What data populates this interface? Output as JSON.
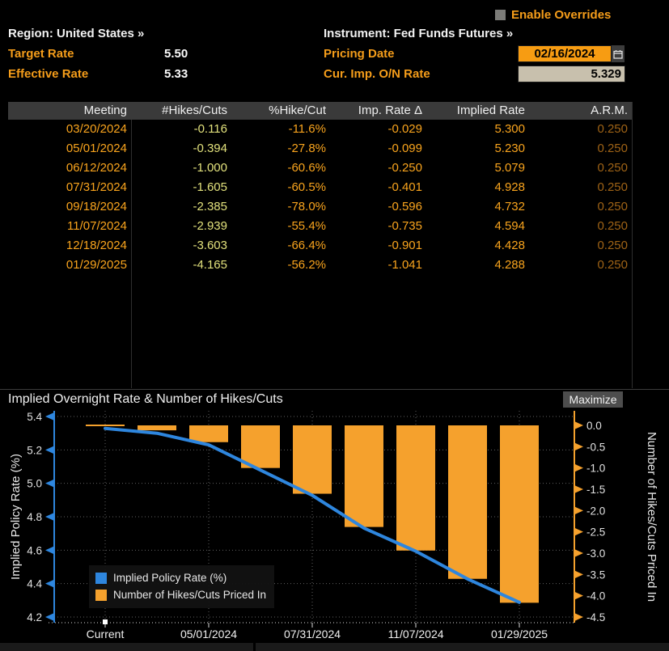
{
  "overrides": {
    "label": "Enable Overrides"
  },
  "header": {
    "region": "Region: United States »",
    "instrument": "Instrument: Fed Funds Futures »",
    "target_rate_label": "Target Rate",
    "target_rate_value": "5.50",
    "effective_rate_label": "Effective Rate",
    "effective_rate_value": "5.33",
    "pricing_date_label": "Pricing Date",
    "pricing_date_value": "02/16/2024",
    "cur_imp_label": "Cur. Imp. O/N Rate",
    "cur_imp_value": "5.329"
  },
  "table": {
    "columns": [
      "Meeting",
      "#Hikes/Cuts",
      "%Hike/Cut",
      "Imp. Rate Δ",
      "Implied Rate",
      "A.R.M."
    ],
    "rows": [
      [
        "03/20/2024",
        "-0.116",
        "-11.6%",
        "-0.029",
        "5.300",
        "0.250"
      ],
      [
        "05/01/2024",
        "-0.394",
        "-27.8%",
        "-0.099",
        "5.230",
        "0.250"
      ],
      [
        "06/12/2024",
        "-1.000",
        "-60.6%",
        "-0.250",
        "5.079",
        "0.250"
      ],
      [
        "07/31/2024",
        "-1.605",
        "-60.5%",
        "-0.401",
        "4.928",
        "0.250"
      ],
      [
        "09/18/2024",
        "-2.385",
        "-78.0%",
        "-0.596",
        "4.732",
        "0.250"
      ],
      [
        "11/07/2024",
        "-2.939",
        "-55.4%",
        "-0.735",
        "4.594",
        "0.250"
      ],
      [
        "12/18/2024",
        "-3.603",
        "-66.4%",
        "-0.901",
        "4.428",
        "0.250"
      ],
      [
        "01/29/2025",
        "-4.165",
        "-56.2%",
        "-1.041",
        "4.288",
        "0.250"
      ]
    ]
  },
  "chart": {
    "title": "Implied Overnight Rate & Number of Hikes/Cuts",
    "maximize_label": "Maximize"
  },
  "chart_data": {
    "type": "line+bar",
    "title": "Implied Overnight Rate & Number of Hikes/Cuts",
    "categories": [
      "Current",
      "03/20/2024",
      "05/01/2024",
      "06/12/2024",
      "07/31/2024",
      "09/18/2024",
      "11/07/2024",
      "12/18/2024",
      "01/29/2025"
    ],
    "series": [
      {
        "name": "Implied Policy Rate (%)",
        "type": "line",
        "axis": "left",
        "color": "#2e86de",
        "values": [
          5.329,
          5.3,
          5.23,
          5.079,
          4.928,
          4.732,
          4.594,
          4.428,
          4.288
        ]
      },
      {
        "name": "Number of Hikes/Cuts Priced In",
        "type": "bar",
        "axis": "right",
        "color": "#f5a12d",
        "values": [
          0,
          -0.116,
          -0.394,
          -1.0,
          -1.605,
          -2.385,
          -2.939,
          -3.603,
          -4.165
        ]
      }
    ],
    "left_axis": {
      "label": "Implied Policy Rate (%)",
      "ticks": [
        5.4,
        5.2,
        5.0,
        4.8,
        4.6,
        4.4,
        4.2
      ],
      "range": [
        4.17,
        5.43
      ],
      "color": "#2e86de"
    },
    "right_axis": {
      "label": "Number of Hikes/Cuts Priced In",
      "ticks": [
        0.0,
        -0.5,
        -1.0,
        -1.5,
        -2.0,
        -2.5,
        -3.0,
        -3.5,
        -4.0,
        -4.5
      ],
      "range": [
        -4.63,
        0.3
      ],
      "color": "#f5a12d"
    },
    "x_tick_labels": [
      "Current",
      "05/01/2024",
      "07/31/2024",
      "11/07/2024",
      "01/29/2025"
    ],
    "grid": true,
    "legend_position": "bottom-left"
  },
  "colors": {
    "accent_orange": "#f59d1a",
    "bar_orange": "#f5a12d",
    "line_blue": "#2e86de",
    "table_yellow": "#e2e17c",
    "arm_dim_orange": "#9f6316",
    "header_bg": "#3a3a3a",
    "field_date_bg": "#f79c12",
    "field_rate_bg": "#c8c0ad"
  }
}
